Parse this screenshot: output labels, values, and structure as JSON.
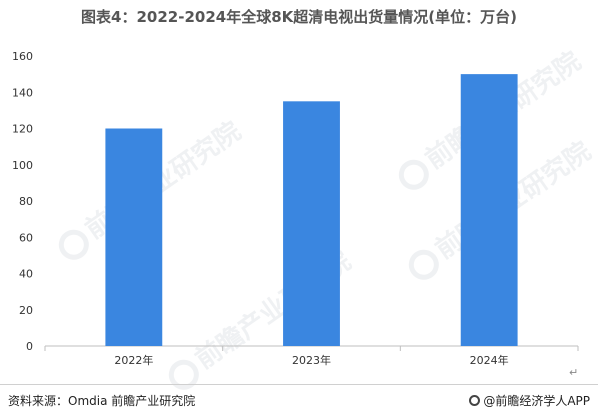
{
  "page": {
    "title": "图表4：2022-2024年全球8K超清电视出货量情况(单位：万台)",
    "source": "资料来源：Omdia 前瞻产业研究院",
    "brand": "@前瞻经济学人APP",
    "watermark_text": "前瞻产业研究院",
    "return_symbol": "↵"
  },
  "colors": {
    "bar": "#3a86e0",
    "axis": "#bfbfbf",
    "text": "#333333"
  },
  "chart_data": {
    "type": "bar",
    "title": "图表4：2022-2024年全球8K超清电视出货量情况(单位：万台)",
    "categories": [
      "2022年",
      "2023年",
      "2024年"
    ],
    "values": [
      120,
      135,
      150
    ],
    "ylim": [
      0,
      160
    ],
    "yticks": [
      0,
      20,
      40,
      60,
      80,
      100,
      120,
      140,
      160
    ],
    "grid": false,
    "xlabel": "",
    "ylabel": ""
  }
}
